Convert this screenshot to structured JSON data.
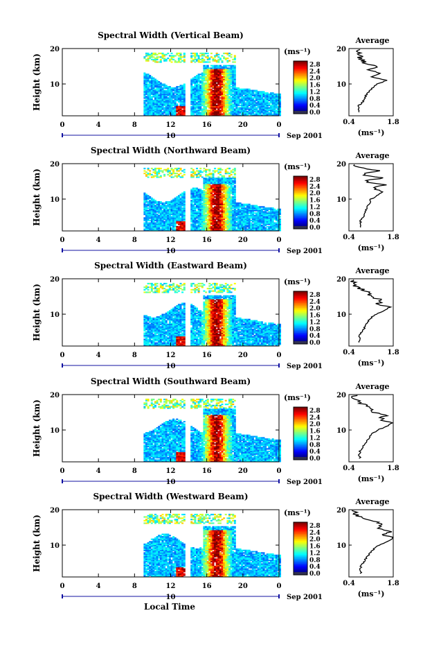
{
  "figure": {
    "xlabel": "Local Time",
    "date_label": "Sep 2001",
    "date_day": "10",
    "units_label": "(ms⁻¹)",
    "avg_title": "Average",
    "avg_xlabel": "(ms⁻¹)",
    "height_label": "Height (km)"
  },
  "chart_data": [
    {
      "type": "heatmap",
      "title": "Spectral Width (Vertical Beam)",
      "xlabel": "",
      "ylabel": "Height (km)",
      "x_ticks": [
        "0",
        "4",
        "8",
        "12",
        "16",
        "20",
        "0"
      ],
      "xlim": [
        0,
        24
      ],
      "y_ticks": [
        "20",
        "10"
      ],
      "ylim": [
        1,
        20
      ],
      "colorbar": {
        "label": "(ms⁻¹)",
        "ticks": [
          "2.8",
          "2.4",
          "2.0",
          "1.6",
          "1.2",
          "0.8",
          "0.4",
          "0.0"
        ],
        "range": [
          0,
          3.0
        ]
      },
      "data_gap_hours": [
        13.4,
        14.1
      ],
      "data_start_hour": 9.0,
      "average_profile": {
        "title": "Average",
        "xlabel": "(ms⁻¹)",
        "x_ticks": [
          "0.4",
          "1.8"
        ],
        "y_ticks": [
          "20",
          "10"
        ],
        "height_km": [
          2,
          3,
          4,
          5,
          6,
          7,
          8,
          9,
          10,
          11,
          12,
          13,
          14,
          15,
          16,
          17,
          18,
          19,
          20
        ],
        "values": [
          0.75,
          0.7,
          0.72,
          0.85,
          0.9,
          0.95,
          1.05,
          1.15,
          1.3,
          1.6,
          1.1,
          1.45,
          1.0,
          1.3,
          0.9,
          0.8,
          0.75,
          0.7,
          0.65
        ]
      }
    },
    {
      "type": "heatmap",
      "title": "Spectral Width (Northward Beam)",
      "xlabel": "",
      "ylabel": "Height (km)",
      "x_ticks": [
        "0",
        "4",
        "8",
        "12",
        "16",
        "20",
        "0"
      ],
      "xlim": [
        0,
        24
      ],
      "y_ticks": [
        "20",
        "10"
      ],
      "ylim": [
        1,
        20
      ],
      "colorbar": {
        "label": "(ms⁻¹)",
        "ticks": [
          "2.8",
          "2.4",
          "2.0",
          "1.6",
          "1.2",
          "0.8",
          "0.4",
          "0.0"
        ],
        "range": [
          0,
          3.0
        ]
      },
      "data_gap_hours": [
        13.4,
        14.1
      ],
      "data_start_hour": 9.0,
      "average_profile": {
        "title": "Average",
        "xlabel": "(ms⁻¹)",
        "x_ticks": [
          "0.4",
          "1.8"
        ],
        "y_ticks": [
          "20",
          "10"
        ],
        "height_km": [
          2,
          3,
          4,
          5,
          6,
          7,
          8,
          9,
          10,
          11,
          12,
          13,
          14,
          15,
          16,
          17,
          18,
          19,
          20
        ],
        "values": [
          0.8,
          0.75,
          0.78,
          0.85,
          0.9,
          0.95,
          1.0,
          1.05,
          1.1,
          1.3,
          1.45,
          1.2,
          1.5,
          0.9,
          1.4,
          0.8,
          1.3,
          0.7,
          0.6
        ]
      }
    },
    {
      "type": "heatmap",
      "title": "Spectral Width (Eastward Beam)",
      "xlabel": "",
      "ylabel": "Height (km)",
      "x_ticks": [
        "0",
        "4",
        "8",
        "12",
        "16",
        "20",
        "0"
      ],
      "xlim": [
        0,
        24
      ],
      "y_ticks": [
        "20",
        "10"
      ],
      "ylim": [
        1,
        20
      ],
      "colorbar": {
        "label": "(ms⁻¹)",
        "ticks": [
          "2.8",
          "2.4",
          "2.0",
          "1.6",
          "1.2",
          "0.8",
          "0.4",
          "0.0"
        ],
        "range": [
          0,
          3.0
        ]
      },
      "data_gap_hours": [
        13.4,
        14.1
      ],
      "data_start_hour": 9.0,
      "average_profile": {
        "title": "Average",
        "xlabel": "(ms⁻¹)",
        "x_ticks": [
          "0.4",
          "1.8"
        ],
        "y_ticks": [
          "20",
          "10"
        ],
        "height_km": [
          2,
          3,
          4,
          5,
          6,
          7,
          8,
          9,
          10,
          11,
          12,
          13,
          14,
          15,
          16,
          17,
          18,
          19,
          20
        ],
        "values": [
          0.75,
          0.72,
          0.75,
          0.8,
          0.88,
          0.95,
          1.0,
          1.1,
          1.25,
          1.5,
          1.7,
          1.3,
          1.45,
          1.1,
          1.0,
          0.8,
          0.6,
          0.55,
          0.5
        ]
      }
    },
    {
      "type": "heatmap",
      "title": "Spectral Width (Southward Beam)",
      "xlabel": "",
      "ylabel": "Height (km)",
      "x_ticks": [
        "0",
        "4",
        "8",
        "12",
        "16",
        "20",
        "0"
      ],
      "xlim": [
        0,
        24
      ],
      "y_ticks": [
        "20",
        "10"
      ],
      "ylim": [
        1,
        20
      ],
      "colorbar": {
        "label": "(ms⁻¹)",
        "ticks": [
          "2.8",
          "2.4",
          "2.0",
          "1.6",
          "1.2",
          "0.8",
          "0.4",
          "0.0"
        ],
        "range": [
          0,
          3.0
        ]
      },
      "data_gap_hours": [
        13.4,
        14.1
      ],
      "data_start_hour": 9.0,
      "average_profile": {
        "title": "Average",
        "xlabel": "(ms⁻¹)",
        "x_ticks": [
          "0.4",
          "1.8"
        ],
        "y_ticks": [
          "20",
          "10"
        ],
        "height_km": [
          2,
          3,
          4,
          5,
          6,
          7,
          8,
          9,
          10,
          11,
          12,
          13,
          14,
          15,
          16,
          17,
          18,
          19,
          20
        ],
        "values": [
          0.75,
          0.72,
          0.75,
          0.82,
          0.9,
          0.97,
          1.05,
          1.15,
          1.3,
          1.6,
          1.75,
          1.4,
          1.55,
          1.2,
          1.1,
          0.9,
          0.7,
          0.6,
          0.55
        ]
      }
    },
    {
      "type": "heatmap",
      "title": "Spectral Width (Westward Beam)",
      "xlabel": "",
      "ylabel": "Height (km)",
      "x_ticks": [
        "0",
        "4",
        "8",
        "12",
        "16",
        "20",
        "0"
      ],
      "xlim": [
        0,
        24
      ],
      "y_ticks": [
        "20",
        "10"
      ],
      "ylim": [
        1,
        20
      ],
      "colorbar": {
        "label": "(ms⁻¹)",
        "ticks": [
          "2.8",
          "2.4",
          "2.0",
          "1.6",
          "1.2",
          "0.8",
          "0.4",
          "0.0"
        ],
        "range": [
          0,
          3.0
        ]
      },
      "data_gap_hours": [
        13.4,
        14.1
      ],
      "data_start_hour": 9.0,
      "average_profile": {
        "title": "Average",
        "xlabel": "(ms⁻¹)",
        "x_ticks": [
          "0.4",
          "1.8"
        ],
        "y_ticks": [
          "20",
          "10"
        ],
        "height_km": [
          2,
          3,
          4,
          5,
          6,
          7,
          8,
          9,
          10,
          11,
          12,
          13,
          14,
          15,
          16,
          17,
          18,
          19,
          20
        ],
        "values": [
          0.78,
          0.75,
          0.78,
          0.85,
          0.92,
          1.0,
          1.1,
          1.2,
          1.35,
          1.6,
          1.8,
          1.5,
          1.7,
          1.3,
          1.5,
          1.0,
          0.75,
          0.6,
          0.5
        ]
      }
    }
  ]
}
